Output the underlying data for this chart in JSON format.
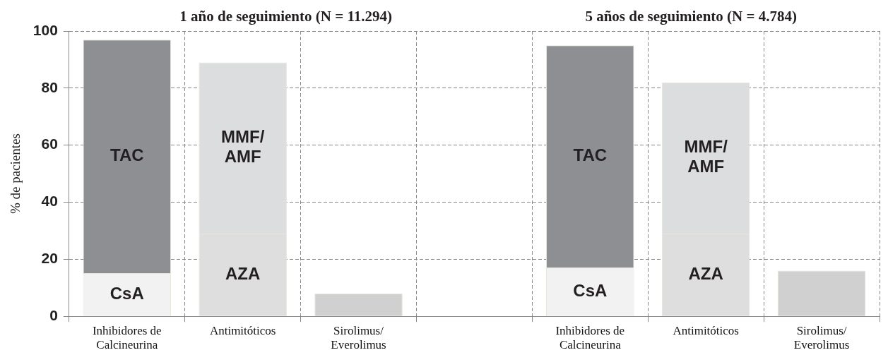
{
  "chart_data": {
    "type": "bar",
    "stacked": true,
    "categories": [
      "Inhibidores de Calcineurina",
      "Antimitóticos",
      "Sirolimus/ Everolimus",
      null,
      "Inhibidores de Calcineurina",
      "Antimitóticos",
      "Sirolimus/ Everolimus"
    ],
    "series": [
      {
        "colors": [
          "#f2f2f2",
          "#dedede",
          "#d0d0d0",
          null,
          "#f2f2f2",
          "#dedede",
          "#d0d0d0"
        ],
        "values": [
          15,
          29,
          8,
          null,
          17,
          29,
          16
        ],
        "value_labels": [
          "CsA",
          "AZA",
          null,
          null,
          "CsA",
          "AZA",
          null
        ]
      },
      {
        "colors": [
          "#8e8f93",
          "#dcdddf",
          null,
          null,
          "#8e8f93",
          "#dcdddf",
          null
        ],
        "values": [
          82,
          60,
          null,
          null,
          78,
          53,
          null
        ],
        "value_labels": [
          "TAC",
          "MMF/\nAMF",
          null,
          null,
          "TAC",
          "MMF/\nAMF",
          null
        ]
      }
    ],
    "ylabel": "% de pacientes",
    "ylim": [
      0,
      100
    ],
    "yticks": [
      0,
      20,
      40,
      60,
      80,
      100
    ],
    "annotations": [
      "1 año de seguimiento (N = 11.294)",
      "5 años de seguimiento (N = 4.784)"
    ],
    "grid": true,
    "legend": false
  }
}
